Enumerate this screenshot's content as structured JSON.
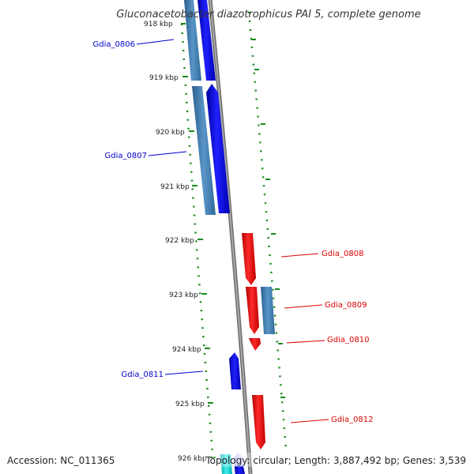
{
  "title": "Gluconacetobacter diazotrophicus PAI 5, complete genome",
  "footer": {
    "accession": "Accession: NC_011365",
    "summary": "Topology: circular; Length: 3,887,492 bp; Genes: 3,539"
  },
  "ticks": [
    "918 kbp",
    "919 kbp",
    "920 kbp",
    "921 kbp",
    "922 kbp",
    "923 kbp",
    "924 kbp",
    "925 kbp",
    "926 kbp"
  ],
  "genes": [
    {
      "name": "Gdia_0806",
      "strand": "reverse",
      "color": "#0000cc"
    },
    {
      "name": "Gdia_0807",
      "strand": "reverse",
      "color": "#0000cc"
    },
    {
      "name": "Gdia_0808",
      "strand": "forward",
      "color": "#dd0000"
    },
    {
      "name": "Gdia_0809",
      "strand": "forward",
      "color": "#dd0000"
    },
    {
      "name": "Gdia_0810",
      "strand": "forward",
      "color": "#dd0000"
    },
    {
      "name": "Gdia_0811",
      "strand": "reverse",
      "color": "#0000cc"
    },
    {
      "name": "Gdia_0812",
      "strand": "forward",
      "color": "#dd0000"
    }
  ],
  "colors": {
    "reverse_cds": "#0000ff",
    "forward_cds": "#ff0000",
    "gene_feature": "#4a86b8",
    "backbone": "#888888",
    "dots": "#1a8a1a",
    "cyan_feature": "#00cccc"
  }
}
